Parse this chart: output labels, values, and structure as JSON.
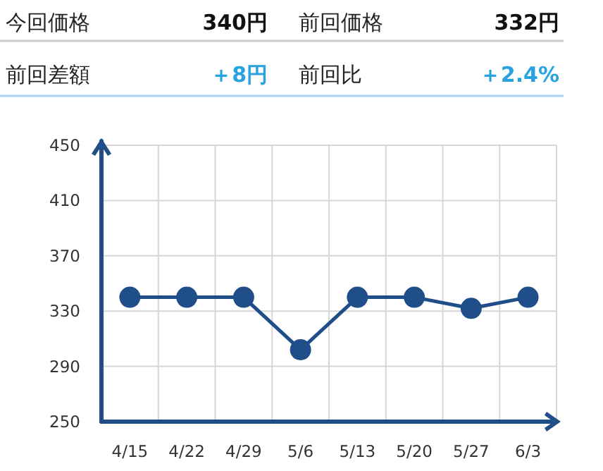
{
  "chart_data": [
    {
      "type": "other",
      "annotations": [
        "今回価格",
        "340円",
        "前回価格",
        "332円",
        "前回差額",
        "＋8円",
        "前回比",
        "＋2.4%"
      ]
    },
    {
      "type": "line",
      "categories": [
        "4/15",
        "4/22",
        "4/29",
        "5/6",
        "5/13",
        "5/20",
        "5/27",
        "6/3"
      ],
      "series": [
        {
          "color": "#1f4e89",
          "values": [
            340,
            340,
            340,
            302,
            340,
            340,
            332,
            340
          ]
        }
      ],
      "ylim": [
        250,
        450
      ],
      "yticks": [
        250,
        290,
        330,
        370,
        410,
        450
      ],
      "grid": true,
      "marker": "circle",
      "line_style": "solid"
    }
  ]
}
